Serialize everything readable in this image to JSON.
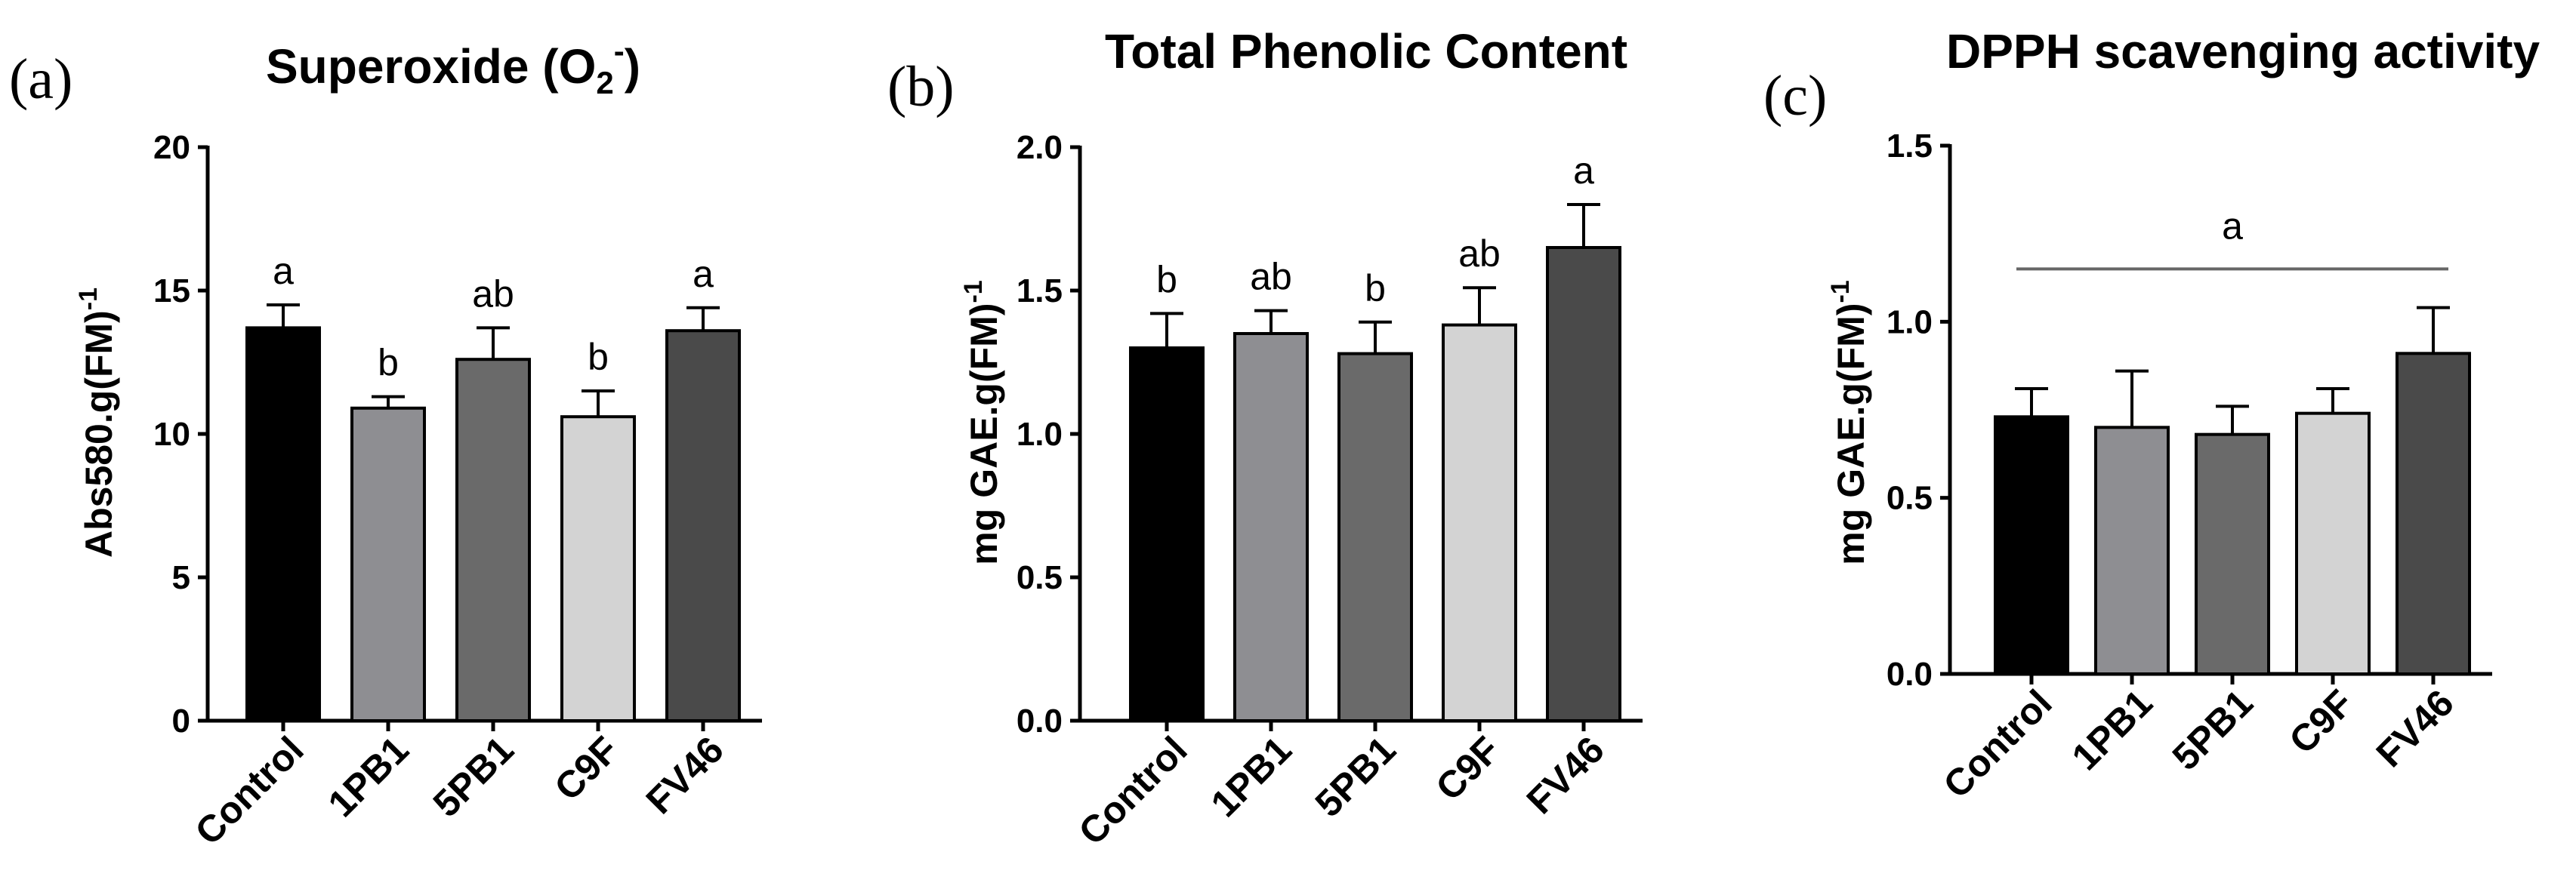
{
  "categories": [
    "Control",
    "1PB1",
    "5PB1",
    "C9F",
    "FV46"
  ],
  "bar_colors": [
    "#000000",
    "#8e8e92",
    "#6a6a6a",
    "#d3d3d3",
    "#4a4a4a"
  ],
  "panels": [
    {
      "letter": "(a)",
      "title": "Superoxide (O",
      "title_sub": "2",
      "title_sup": "-",
      "title_end": ")",
      "ylabel": "Abs580.g(FM)",
      "ylabel_sup": "-1",
      "sig_line": null
    },
    {
      "letter": "(b)",
      "title": "Total Phenolic Content",
      "ylabel": "mg GAE.g(FM)",
      "ylabel_sup": "-1",
      "sig_line": null
    },
    {
      "letter": "(c)",
      "title": "DPPH scavenging activity",
      "ylabel": "mg GAE.g(FM)",
      "ylabel_sup": "-1",
      "sig_line": {
        "label": "a"
      }
    }
  ],
  "chart_data": [
    {
      "type": "bar",
      "title": "Superoxide (O2-)",
      "ylabel": "Abs580.g(FM)-1",
      "categories": [
        "Control",
        "1PB1",
        "5PB1",
        "C9F",
        "FV46"
      ],
      "ylim": [
        0,
        20
      ],
      "yticks": [
        0,
        5,
        10,
        15,
        20
      ],
      "ytick_labels": [
        "0",
        "5",
        "10",
        "15",
        "20"
      ],
      "values": [
        13.7,
        10.9,
        12.6,
        10.6,
        13.6
      ],
      "errors": [
        0.8,
        0.4,
        1.1,
        0.9,
        0.8
      ],
      "significance": [
        "a",
        "b",
        "ab",
        "b",
        "a"
      ]
    },
    {
      "type": "bar",
      "title": "Total Phenolic Content",
      "ylabel": "mg GAE.g(FM)-1",
      "categories": [
        "Control",
        "1PB1",
        "5PB1",
        "C9F",
        "FV46"
      ],
      "ylim": [
        0,
        2.0
      ],
      "yticks": [
        0,
        0.5,
        1.0,
        1.5,
        2.0
      ],
      "ytick_labels": [
        "0.0",
        "0.5",
        "1.0",
        "1.5",
        "2.0"
      ],
      "values": [
        1.3,
        1.35,
        1.28,
        1.38,
        1.65
      ],
      "errors": [
        0.12,
        0.08,
        0.11,
        0.13,
        0.15
      ],
      "significance": [
        "b",
        "ab",
        "b",
        "ab",
        "a"
      ]
    },
    {
      "type": "bar",
      "title": "DPPH scavenging activity",
      "ylabel": "mg GAE.g(FM)-1",
      "categories": [
        "Control",
        "1PB1",
        "5PB1",
        "C9F",
        "FV46"
      ],
      "ylim": [
        0,
        1.5
      ],
      "yticks": [
        0,
        0.5,
        1.0,
        1.5
      ],
      "ytick_labels": [
        "0.0",
        "0.5",
        "1.0",
        "1.5"
      ],
      "values": [
        0.73,
        0.7,
        0.68,
        0.74,
        0.91
      ],
      "errors": [
        0.08,
        0.16,
        0.08,
        0.07,
        0.13
      ],
      "significance": []
    }
  ]
}
